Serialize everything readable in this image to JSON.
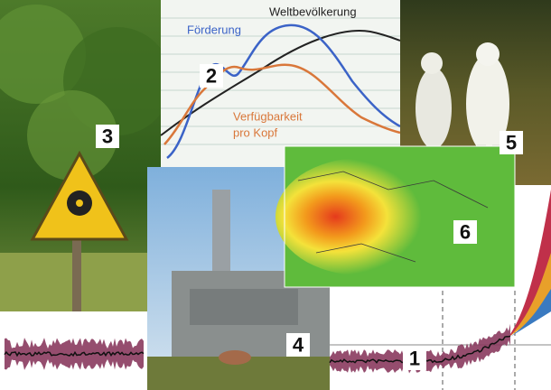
{
  "panels": [
    {
      "label": "1"
    },
    {
      "label": "2"
    },
    {
      "label": "3"
    },
    {
      "label": "4"
    },
    {
      "label": "5"
    },
    {
      "label": "6"
    }
  ],
  "chart_fragment": {
    "annotations": [
      {
        "text": "Weltbevölkerung"
      },
      {
        "text": "Förderung"
      },
      {
        "lines": [
          "Verfügbarkeit",
          "pro Kopf"
        ]
      }
    ]
  }
}
